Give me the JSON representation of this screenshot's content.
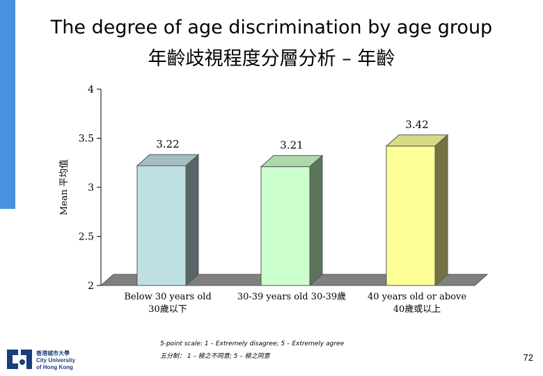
{
  "slide": {
    "title_en": "The degree of age discrimination by age group",
    "title_zh": "年齡歧視程度分層分析 – 年齡",
    "scale_note_en": "5-point scale: 1 – Extremely disagree; 5 – Extremely agree",
    "scale_note_zh": "五分制： 1 – 極之不同意; 5 – 極之同意",
    "page_number": "72",
    "logo_lines": [
      "香港城市大學",
      "City University",
      "of Hong Kong"
    ]
  },
  "colors": {
    "edge_bar": "#4a90e2",
    "bar_1": "#bfe0e3",
    "bar_2": "#ccffcc",
    "bar_3": "#ffff99",
    "floor": "#808080"
  },
  "chart_data": {
    "type": "bar",
    "style": "3d",
    "categories": [
      "Below 30 years old 30歲以下",
      "30-39 years old 30-39歲",
      "40 years old or above 40歲或以上"
    ],
    "category_lines": [
      [
        "Below 30 years old",
        "30歲以下"
      ],
      [
        "30-39 years old 30-39歲"
      ],
      [
        "40 years old or above",
        "40歲或以上"
      ]
    ],
    "values": [
      3.22,
      3.21,
      3.42
    ],
    "value_labels": [
      "3.22",
      "3.21",
      "3.42"
    ],
    "ylabel": "Mean 平均值",
    "ylim": [
      2,
      4
    ],
    "yticks": [
      2,
      2.5,
      3,
      3.5,
      4
    ],
    "ytick_labels": [
      "2",
      "2.5",
      "3",
      "3.5",
      "4"
    ],
    "grid": false,
    "legend": "none"
  }
}
